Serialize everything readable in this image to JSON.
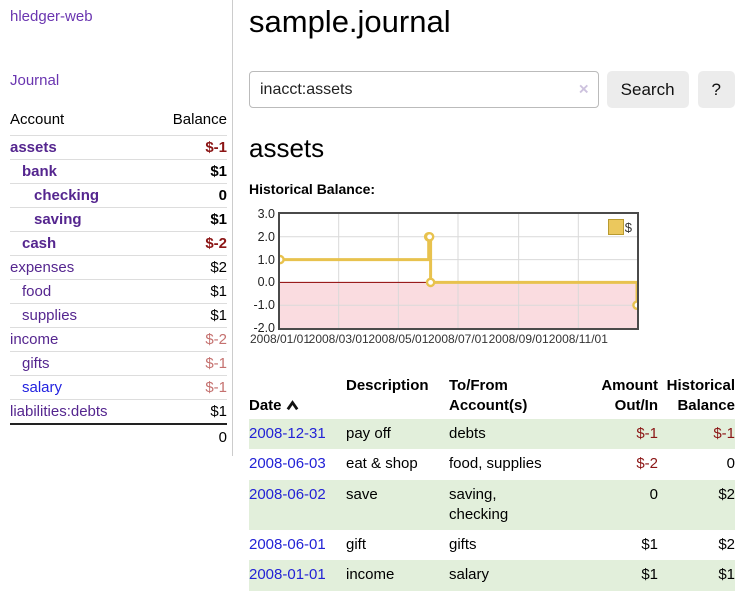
{
  "app": {
    "brand": "hledger-web",
    "nav_journal": "Journal"
  },
  "sidebar": {
    "accounts_header": {
      "account": "Account",
      "balance": "Balance"
    },
    "accounts": [
      {
        "name": "assets",
        "balance": "$-1",
        "depth": 0,
        "bold": true,
        "negative": true,
        "link_color": "purple"
      },
      {
        "name": "bank",
        "balance": "$1",
        "depth": 1,
        "bold": true,
        "negative": false,
        "link_color": "purple"
      },
      {
        "name": "checking",
        "balance": "0",
        "depth": 2,
        "bold": true,
        "negative": false,
        "link_color": "purple"
      },
      {
        "name": "saving",
        "balance": "$1",
        "depth": 2,
        "bold": true,
        "negative": false,
        "link_color": "purple"
      },
      {
        "name": "cash",
        "balance": "$-2",
        "depth": 1,
        "bold": true,
        "negative": true,
        "link_color": "purple"
      },
      {
        "name": "expenses",
        "balance": "$2",
        "depth": 0,
        "bold": false,
        "negative": false,
        "link_color": "purple"
      },
      {
        "name": "food",
        "balance": "$1",
        "depth": 1,
        "bold": false,
        "negative": false,
        "link_color": "purple"
      },
      {
        "name": "supplies",
        "balance": "$1",
        "depth": 1,
        "bold": false,
        "negative": false,
        "link_color": "purple"
      },
      {
        "name": "income",
        "balance": "$-2",
        "depth": 0,
        "bold": false,
        "negative": true,
        "link_color": "purple"
      },
      {
        "name": "gifts",
        "balance": "$-1",
        "depth": 1,
        "bold": false,
        "negative": true,
        "link_color": "purple"
      },
      {
        "name": "salary",
        "balance": "$-1",
        "depth": 1,
        "bold": false,
        "negative": true,
        "link_color": "blue"
      },
      {
        "name": "liabilities:debts",
        "balance": "$1",
        "depth": 0,
        "bold": false,
        "negative": false,
        "link_color": "purple"
      }
    ],
    "total": "0"
  },
  "header": {
    "title": "sample.journal"
  },
  "search": {
    "value": "inacct:assets",
    "clear_icon": "×",
    "button_label": "Search",
    "help_label": "?"
  },
  "register": {
    "heading": "assets",
    "chart_label": "Historical Balance:"
  },
  "chart_data": {
    "type": "line",
    "title": "Historical Balance",
    "series": [
      {
        "name": "$",
        "step": true,
        "color": "#e8c24e",
        "points": [
          [
            "2008-01-01",
            1
          ],
          [
            "2008-06-01",
            2
          ],
          [
            "2008-06-02",
            2
          ],
          [
            "2008-06-03",
            0
          ],
          [
            "2008-12-31",
            -1
          ]
        ]
      }
    ],
    "xdomain": [
      "2008-01-01",
      "2008-12-31"
    ],
    "ylim": [
      -2,
      3
    ],
    "yticks": [
      3,
      2,
      1,
      0,
      -1,
      -2
    ],
    "ytick_labels": [
      "3.0",
      "2.0",
      "1.0",
      "0.0",
      "-1.0",
      "-2.0"
    ],
    "xticks": [
      "2008-01-01",
      "2008-03-01",
      "2008-05-01",
      "2008-07-01",
      "2008-09-01",
      "2008-11-01"
    ],
    "xtick_labels": [
      "2008/01/01",
      "2008/03/01",
      "2008/05/01",
      "2008/07/01",
      "2008/09/01",
      "2008/11/01"
    ],
    "grid": true,
    "legend_position": "top-right",
    "legend": {
      "label": "$",
      "swatch_color": "#ebc85d"
    },
    "negative_region_color": "#fadce0",
    "zero_line_color": "#8b0000",
    "grid_color": "#d9d9d9",
    "border_color": "#4a4a4a"
  },
  "table": {
    "headers": {
      "date": "Date",
      "description": "Description",
      "account": "To/From\nAccount(s)",
      "amount": "Amount\nOut/In",
      "balance": "Historical\nBalance"
    },
    "sort": {
      "column": "Date",
      "direction": "ascending",
      "icon": "chevron-up"
    },
    "rows": [
      {
        "date": "2008-12-31",
        "description": "pay off",
        "accounts": "debts",
        "amount": "$-1",
        "amount_negative": true,
        "balance": "$-1",
        "balance_negative": true
      },
      {
        "date": "2008-06-03",
        "description": "eat & shop",
        "accounts": "food, supplies",
        "amount": "$-2",
        "amount_negative": true,
        "balance": "0",
        "balance_negative": false
      },
      {
        "date": "2008-06-02",
        "description": "save",
        "accounts": "saving,\nchecking",
        "amount": "0",
        "amount_negative": false,
        "balance": "$2",
        "balance_negative": false
      },
      {
        "date": "2008-06-01",
        "description": "gift",
        "accounts": "gifts",
        "amount": "$1",
        "amount_negative": false,
        "balance": "$2",
        "balance_negative": false
      },
      {
        "date": "2008-01-01",
        "description": "income",
        "accounts": "salary",
        "amount": "$1",
        "amount_negative": false,
        "balance": "$1",
        "balance_negative": false
      }
    ]
  },
  "colors": {
    "link_purple": "#55268f",
    "link_blue": "#2222d6",
    "negative_bold": "#8b1515",
    "negative_light": "#c5716f",
    "row_green": "#e2efdb",
    "line_gold": "#e8c24e"
  }
}
